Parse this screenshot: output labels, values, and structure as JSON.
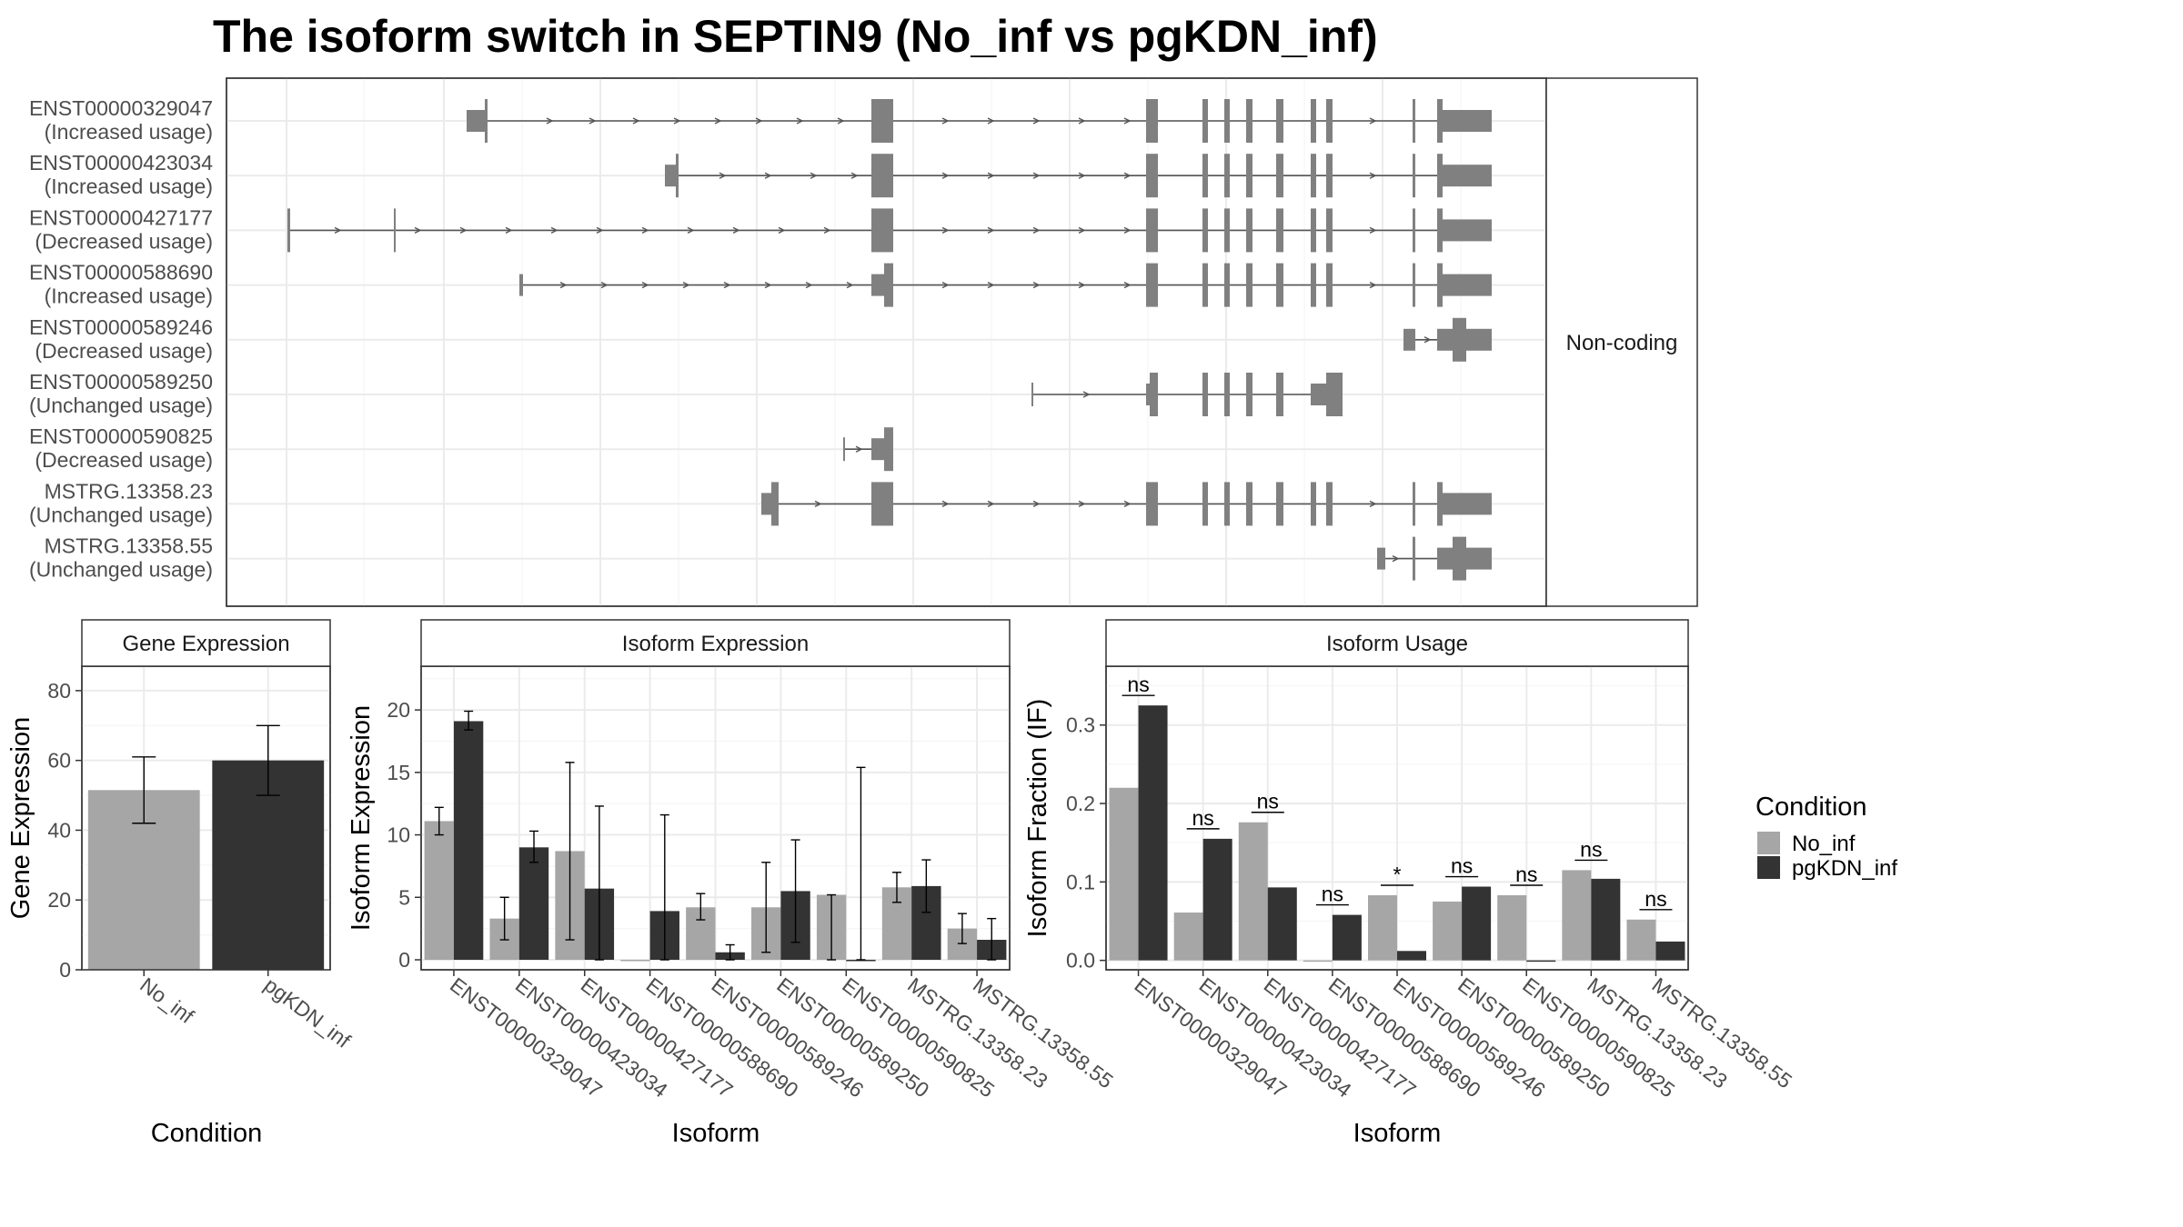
{
  "title": "The isoform switch in SEPTIN9 (No_inf vs pgKDN_inf)",
  "colors": {
    "No_inf": "#a6a6a6",
    "pgKDN_inf": "#333333",
    "exon": "#808080",
    "line": "#555555"
  },
  "chart_data": [
    {
      "type": "transcript-structure",
      "facet_label": "Non-coding",
      "transcripts": [
        {
          "id": "ENST00000329047",
          "usage": "(Increased usage)"
        },
        {
          "id": "ENST00000423034",
          "usage": "(Increased usage)"
        },
        {
          "id": "ENST00000427177",
          "usage": "(Decreased usage)"
        },
        {
          "id": "ENST00000588690",
          "usage": "(Increased usage)"
        },
        {
          "id": "ENST00000589246",
          "usage": "(Decreased usage)"
        },
        {
          "id": "ENST00000589250",
          "usage": "(Unchanged usage)"
        },
        {
          "id": "ENST00000590825",
          "usage": "(Decreased usage)"
        },
        {
          "id": "MSTRG.13358.23",
          "usage": "(Unchanged usage)"
        },
        {
          "id": "MSTRG.13358.55",
          "usage": "(Unchanged usage)"
        }
      ]
    },
    {
      "type": "bar",
      "panel_title": "Gene Expression",
      "xlabel": "Condition",
      "ylabel": "Gene Expression",
      "ylim": [
        0,
        87
      ],
      "yticks": [
        0,
        20,
        40,
        60,
        80
      ],
      "categories": [
        "No_inf",
        "pgKDN_inf"
      ],
      "values": [
        51.5,
        60
      ],
      "err_low": [
        42,
        50
      ],
      "err_high": [
        61,
        70
      ]
    },
    {
      "type": "bar",
      "panel_title": "Isoform Expression",
      "xlabel": "Isoform",
      "ylabel": "Isoform Expression",
      "ylim": [
        -0.8,
        23.5
      ],
      "yticks": [
        0,
        5,
        10,
        15,
        20
      ],
      "categories": [
        "ENST00000329047",
        "ENST00000423034",
        "ENST00000427177",
        "ENST00000588690",
        "ENST00000589246",
        "ENST00000589250",
        "ENST00000590825",
        "MSTRG.13358.23",
        "MSTRG.13358.55"
      ],
      "series": [
        {
          "name": "No_inf",
          "values": [
            11.1,
            3.3,
            8.7,
            0,
            4.2,
            4.2,
            5.2,
            5.8,
            2.5
          ],
          "err_low": [
            10.0,
            1.6,
            1.6,
            0,
            3.2,
            0.6,
            0,
            4.6,
            1.3
          ],
          "err_high": [
            12.2,
            5.0,
            15.8,
            0,
            5.3,
            7.8,
            5.2,
            7.0,
            3.7
          ]
        },
        {
          "name": "pgKDN_inf",
          "values": [
            19.1,
            9.0,
            5.7,
            3.9,
            0.6,
            5.5,
            0,
            5.9,
            1.6
          ],
          "err_low": [
            18.4,
            7.8,
            0,
            0,
            0,
            1.4,
            0,
            3.8,
            0
          ],
          "err_high": [
            19.9,
            10.3,
            12.3,
            11.6,
            1.2,
            9.6,
            15.4,
            8.0,
            3.3
          ]
        }
      ]
    },
    {
      "type": "bar",
      "panel_title": "Isoform Usage",
      "xlabel": "Isoform",
      "ylabel": "Isoform Fraction (IF)",
      "ylim": [
        -0.012,
        0.375
      ],
      "yticks": [
        "0.0",
        "0.1",
        "0.2",
        "0.3"
      ],
      "categories": [
        "ENST00000329047",
        "ENST00000423034",
        "ENST00000427177",
        "ENST00000588690",
        "ENST00000589246",
        "ENST00000589250",
        "ENST00000590825",
        "MSTRG.13358.23",
        "MSTRG.13358.55"
      ],
      "series": [
        {
          "name": "No_inf",
          "values": [
            0.22,
            0.061,
            0.176,
            0,
            0.083,
            0.075,
            0.083,
            0.115,
            0.052
          ]
        },
        {
          "name": "pgKDN_inf",
          "values": [
            0.325,
            0.155,
            0.093,
            0.058,
            0.012,
            0.094,
            0,
            0.104,
            0.024
          ]
        }
      ],
      "significance": [
        "ns",
        "ns",
        "ns",
        "ns",
        "*",
        "ns",
        "ns",
        "ns",
        "ns"
      ]
    }
  ],
  "legend": {
    "title": "Condition",
    "items": [
      {
        "label": "No_inf",
        "color": "#a6a6a6"
      },
      {
        "label": "pgKDN_inf",
        "color": "#333333"
      }
    ]
  }
}
